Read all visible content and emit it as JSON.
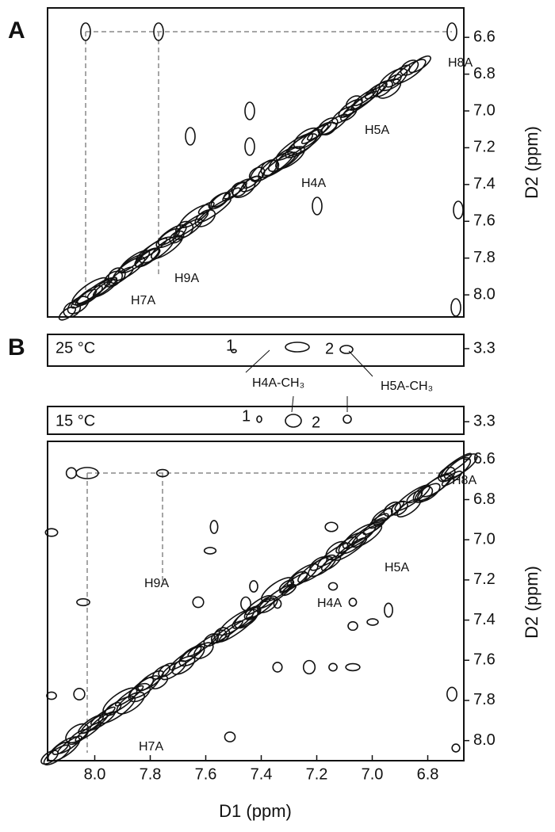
{
  "chart_data": [
    {
      "type": "nmr2d",
      "panel": "A",
      "y_label": "D2 (ppm)",
      "ylim": [
        6.44,
        8.12
      ],
      "yticks": [
        6.6,
        6.8,
        {
          "value": 7,
          "label": "7.0"
        },
        7.2,
        7.4,
        7.6,
        7.8,
        {
          "value": 8,
          "label": "8.0"
        }
      ],
      "annotations": [
        "H8A",
        "H5A",
        "H4A",
        "H9A",
        "H7A"
      ]
    },
    {
      "type": "strip",
      "panel": "B",
      "ylim": [
        3.21,
        3.41
      ],
      "yticks": [
        3.3
      ],
      "annotations": [
        "25 °C",
        "1",
        "2",
        "H4A-CH₃",
        "H5A-CH₃"
      ]
    },
    {
      "type": "strip",
      "ylim": [
        3.19,
        3.39
      ],
      "yticks": [
        3.3
      ],
      "annotations": [
        "15 °C",
        "1",
        "2"
      ]
    },
    {
      "type": "nmr2d",
      "y_label": "D2 (ppm)",
      "x_label": "D1 (ppm)",
      "xlim": [
        8.17,
        6.67
      ],
      "xticks": [
        {
          "value": 8,
          "label": "8.0"
        },
        7.8,
        7.6,
        7.4,
        7.2,
        {
          "value": 7,
          "label": "7.0"
        },
        6.8
      ],
      "ylim": [
        6.51,
        8.1
      ],
      "yticks": [
        6.6,
        6.8,
        {
          "value": 7,
          "label": "7.0"
        },
        7.2,
        7.4,
        7.6,
        7.8,
        {
          "value": 8,
          "label": "8.0"
        }
      ],
      "annotations": [
        "H8A",
        "H5A",
        "H4A",
        "H9A",
        "H7A"
      ]
    }
  ]
}
